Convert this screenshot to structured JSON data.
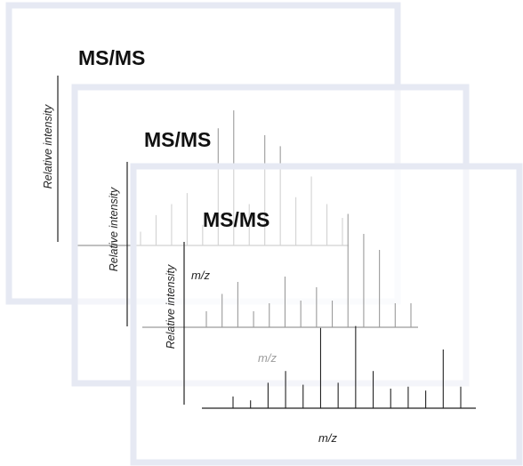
{
  "panels": [
    {
      "id": "spectrum-1",
      "title": "MS/MS",
      "ylabel": "Relative intensity",
      "xlabel": "",
      "peaks": [
        0.1,
        0.22,
        0.3,
        0.38,
        0.15,
        0.85,
        0.98,
        0.3,
        0.8,
        0.72,
        0.35,
        0.5,
        0.3,
        0.2
      ]
    },
    {
      "id": "spectrum-2",
      "title": "MS/MS",
      "ylabel": "Relative intensity",
      "xlabel": "m/z",
      "peaks": [
        0.12,
        0.25,
        0.34,
        0.12,
        0.18,
        0.38,
        0.2,
        0.3,
        0.2,
        0.85,
        0.7,
        0.58,
        0.18,
        0.18
      ]
    },
    {
      "id": "spectrum-3",
      "title": "MS/MS",
      "ylabel": "Relative intensity",
      "xlabel": "m/z",
      "peaks": [
        0.12,
        0.08,
        0.26,
        0.38,
        0.24,
        0.82,
        0.26,
        0.84,
        0.38,
        0.2,
        0.22,
        0.18,
        0.6,
        0.22
      ]
    }
  ]
}
